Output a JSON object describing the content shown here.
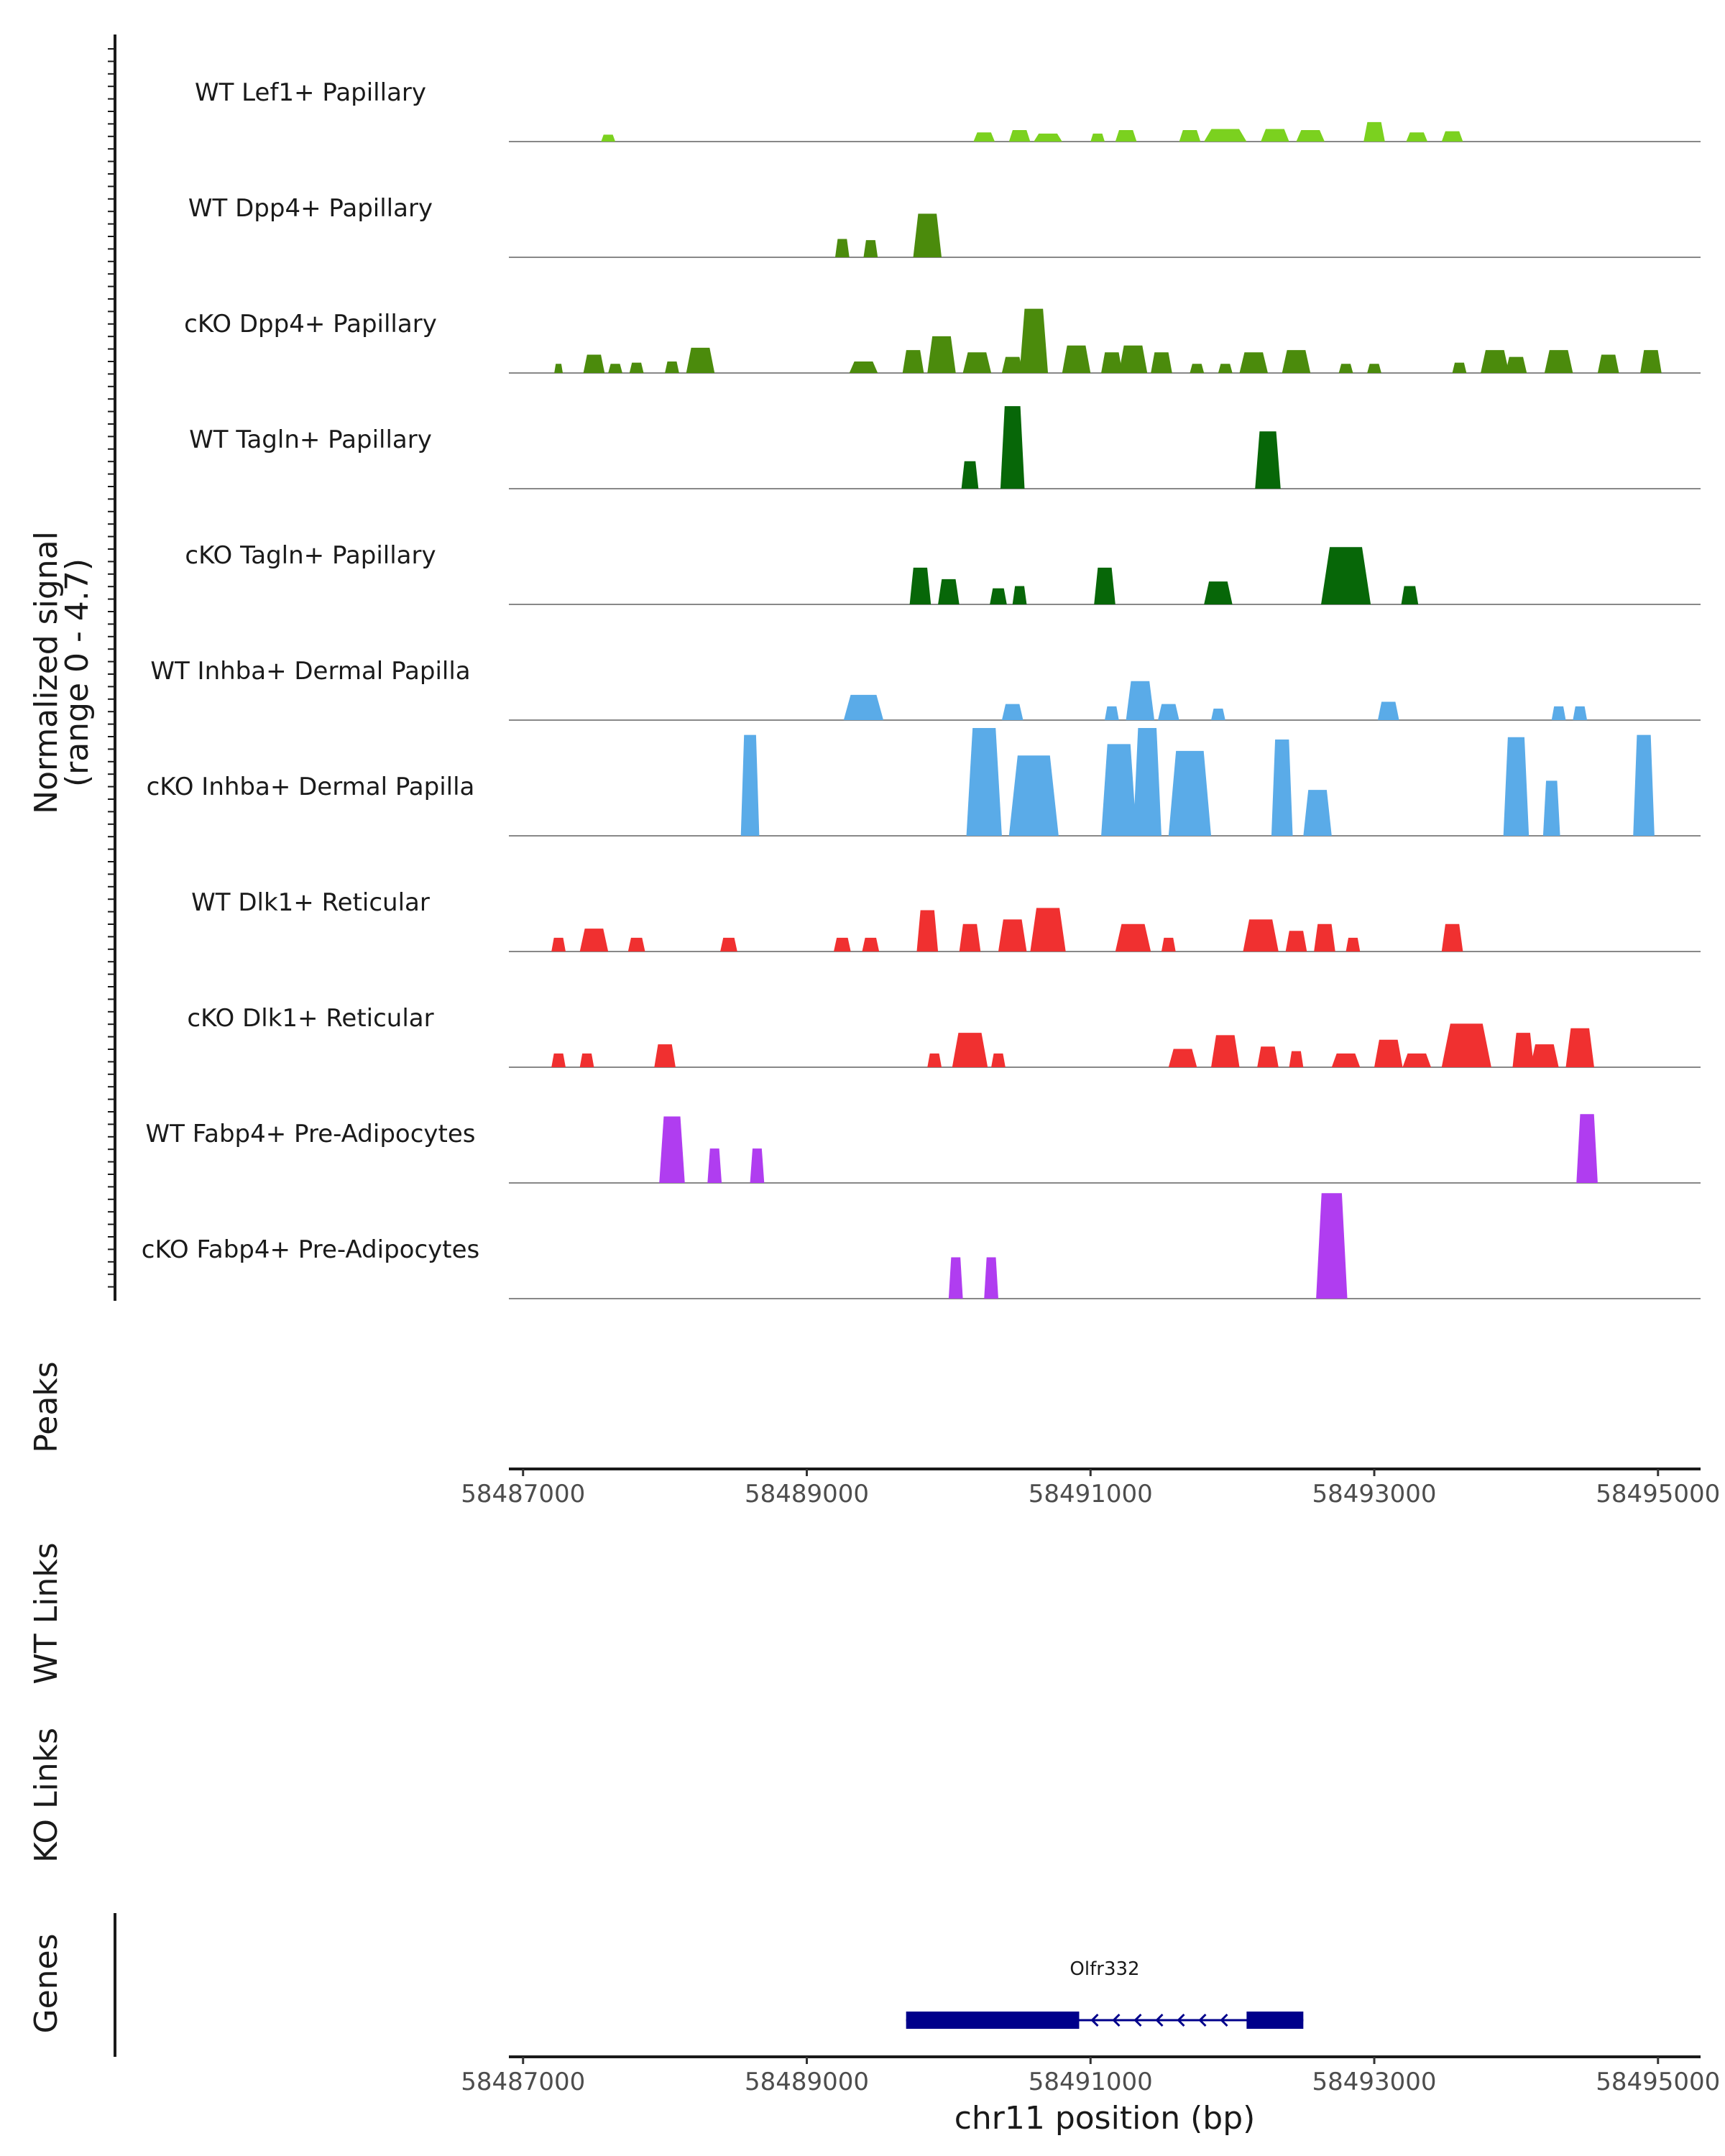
{
  "chart_data": {
    "type": "area",
    "y_axis_title": "Normalized signal",
    "y_axis_subtitle": "(range 0 - 4.7)",
    "ylim": [
      0,
      4.7
    ],
    "xlim": [
      58486900,
      58495300
    ],
    "x_ticks": [
      58487000,
      58489000,
      58491000,
      58493000,
      58495000
    ],
    "x_tick_labels": [
      "58487000",
      "58489000",
      "58491000",
      "58493000",
      "58495000"
    ],
    "xlabel": "chr11 position (bp)",
    "panels": {
      "peaks": "Peaks",
      "wt_links": "WT Links",
      "ko_links": "KO Links",
      "genes": "Genes"
    },
    "tracks": [
      {
        "name": "WT Lef1+ Papillary",
        "color": "#7bd11f",
        "peaks": [
          [
            58487600,
            0.3,
            100
          ],
          [
            58490250,
            0.4,
            150
          ],
          [
            58490500,
            0.5,
            150
          ],
          [
            58490700,
            0.35,
            200
          ],
          [
            58491050,
            0.35,
            100
          ],
          [
            58491250,
            0.5,
            150
          ],
          [
            58491700,
            0.5,
            150
          ],
          [
            58491950,
            0.55,
            300
          ],
          [
            58492300,
            0.55,
            200
          ],
          [
            58492550,
            0.5,
            200
          ],
          [
            58493000,
            0.85,
            150
          ],
          [
            58493300,
            0.4,
            150
          ],
          [
            58493550,
            0.45,
            150
          ]
        ]
      },
      {
        "name": "WT Dpp4+ Papillary",
        "color": "#4b8b0c",
        "peaks": [
          [
            58489250,
            0.8,
            100
          ],
          [
            58489450,
            0.75,
            100
          ],
          [
            58489850,
            1.9,
            200
          ]
        ]
      },
      {
        "name": "cKO Dpp4+ Papillary",
        "color": "#4b8b0c",
        "peaks": [
          [
            58487250,
            0.4,
            60
          ],
          [
            58487500,
            0.8,
            150
          ],
          [
            58487650,
            0.4,
            100
          ],
          [
            58487800,
            0.45,
            100
          ],
          [
            58488050,
            0.5,
            100
          ],
          [
            58488250,
            1.1,
            200
          ],
          [
            58489400,
            0.5,
            200
          ],
          [
            58489750,
            1.0,
            150
          ],
          [
            58489950,
            1.6,
            200
          ],
          [
            58490200,
            0.9,
            200
          ],
          [
            58490450,
            0.7,
            150
          ],
          [
            58490600,
            2.8,
            200
          ],
          [
            58490900,
            1.2,
            200
          ],
          [
            58491150,
            0.9,
            150
          ],
          [
            58491300,
            1.2,
            200
          ],
          [
            58491500,
            0.9,
            150
          ],
          [
            58491750,
            0.4,
            100
          ],
          [
            58491950,
            0.4,
            100
          ],
          [
            58492150,
            0.9,
            200
          ],
          [
            58492450,
            1.0,
            200
          ],
          [
            58492800,
            0.4,
            100
          ],
          [
            58493000,
            0.4,
            100
          ],
          [
            58493600,
            0.45,
            100
          ],
          [
            58493850,
            1.0,
            200
          ],
          [
            58494000,
            0.7,
            150
          ],
          [
            58494300,
            1.0,
            200
          ],
          [
            58494650,
            0.8,
            150
          ],
          [
            58494950,
            1.0,
            150
          ]
        ]
      },
      {
        "name": "WT Tagln+ Papillary",
        "color": "#076708",
        "peaks": [
          [
            58490150,
            1.2,
            120
          ],
          [
            58490450,
            3.6,
            170
          ],
          [
            58492250,
            2.5,
            180
          ]
        ]
      },
      {
        "name": "cKO Tagln+ Papillary",
        "color": "#076708",
        "peaks": [
          [
            58489800,
            1.6,
            150
          ],
          [
            58490000,
            1.1,
            150
          ],
          [
            58490350,
            0.7,
            120
          ],
          [
            58490500,
            0.8,
            100
          ],
          [
            58491100,
            1.6,
            150
          ],
          [
            58491900,
            1.0,
            200
          ],
          [
            58492800,
            2.5,
            350
          ],
          [
            58493250,
            0.8,
            120
          ]
        ]
      },
      {
        "name": "WT Inhba+ Dermal Papilla",
        "color": "#5aabe8",
        "peaks": [
          [
            58489400,
            1.1,
            280
          ],
          [
            58490450,
            0.7,
            150
          ],
          [
            58491150,
            0.6,
            100
          ],
          [
            58491350,
            1.7,
            200
          ],
          [
            58491550,
            0.7,
            150
          ],
          [
            58491900,
            0.5,
            100
          ],
          [
            58493100,
            0.8,
            150
          ],
          [
            58494300,
            0.6,
            100
          ],
          [
            58494450,
            0.6,
            100
          ]
        ]
      },
      {
        "name": "cKO Inhba+ Dermal Papilla",
        "color": "#5aabe8",
        "peaks": [
          [
            58488600,
            4.4,
            130
          ],
          [
            58490250,
            4.7,
            250
          ],
          [
            58490600,
            3.5,
            350
          ],
          [
            58491200,
            4.0,
            250
          ],
          [
            58491400,
            4.7,
            200
          ],
          [
            58491700,
            3.7,
            300
          ],
          [
            58492350,
            4.2,
            150
          ],
          [
            58492600,
            2.0,
            200
          ],
          [
            58494000,
            4.3,
            180
          ],
          [
            58494250,
            2.4,
            120
          ],
          [
            58494900,
            4.4,
            150
          ]
        ]
      },
      {
        "name": "WT Dlk1+ Reticular",
        "color": "#f03030",
        "peaks": [
          [
            58487250,
            0.6,
            100
          ],
          [
            58487500,
            1.0,
            200
          ],
          [
            58487800,
            0.6,
            120
          ],
          [
            58488450,
            0.6,
            120
          ],
          [
            58489250,
            0.6,
            120
          ],
          [
            58489450,
            0.6,
            120
          ],
          [
            58489850,
            1.8,
            150
          ],
          [
            58490150,
            1.2,
            150
          ],
          [
            58490450,
            1.4,
            200
          ],
          [
            58490700,
            1.9,
            250
          ],
          [
            58491300,
            1.2,
            250
          ],
          [
            58491550,
            0.6,
            100
          ],
          [
            58492200,
            1.4,
            250
          ],
          [
            58492450,
            0.9,
            150
          ],
          [
            58492650,
            1.2,
            150
          ],
          [
            58492850,
            0.6,
            100
          ],
          [
            58493550,
            1.2,
            150
          ]
        ]
      },
      {
        "name": "cKO Dlk1+ Reticular",
        "color": "#f03030",
        "peaks": [
          [
            58487250,
            0.6,
            100
          ],
          [
            58487450,
            0.6,
            100
          ],
          [
            58488000,
            1.0,
            150
          ],
          [
            58489900,
            0.6,
            100
          ],
          [
            58490150,
            1.5,
            250
          ],
          [
            58490350,
            0.6,
            100
          ],
          [
            58491650,
            0.8,
            200
          ],
          [
            58491950,
            1.4,
            200
          ],
          [
            58492250,
            0.9,
            150
          ],
          [
            58492450,
            0.7,
            100
          ],
          [
            58492800,
            0.6,
            200
          ],
          [
            58493100,
            1.2,
            200
          ],
          [
            58493300,
            0.6,
            200
          ],
          [
            58493650,
            1.9,
            350
          ],
          [
            58494050,
            1.5,
            150
          ],
          [
            58494200,
            1.0,
            200
          ],
          [
            58494450,
            1.7,
            200
          ]
        ]
      },
      {
        "name": "WT Fabp4+ Pre-Adipocytes",
        "color": "#b03df0",
        "peaks": [
          [
            58488050,
            2.9,
            180
          ],
          [
            58488350,
            1.5,
            100
          ],
          [
            58488650,
            1.5,
            100
          ],
          [
            58494500,
            3.0,
            150
          ]
        ]
      },
      {
        "name": "cKO Fabp4+ Pre-Adipocytes",
        "color": "#b03df0",
        "peaks": [
          [
            58490050,
            1.8,
            100
          ],
          [
            58490300,
            1.8,
            100
          ],
          [
            58492700,
            4.6,
            220
          ]
        ]
      }
    ],
    "genes": [
      {
        "name": "Olfr332",
        "start": 58489700,
        "end": 58492500,
        "strand": "-",
        "exons": [
          [
            58489700,
            58490920
          ],
          [
            58492100,
            58492500
          ]
        ]
      }
    ]
  }
}
